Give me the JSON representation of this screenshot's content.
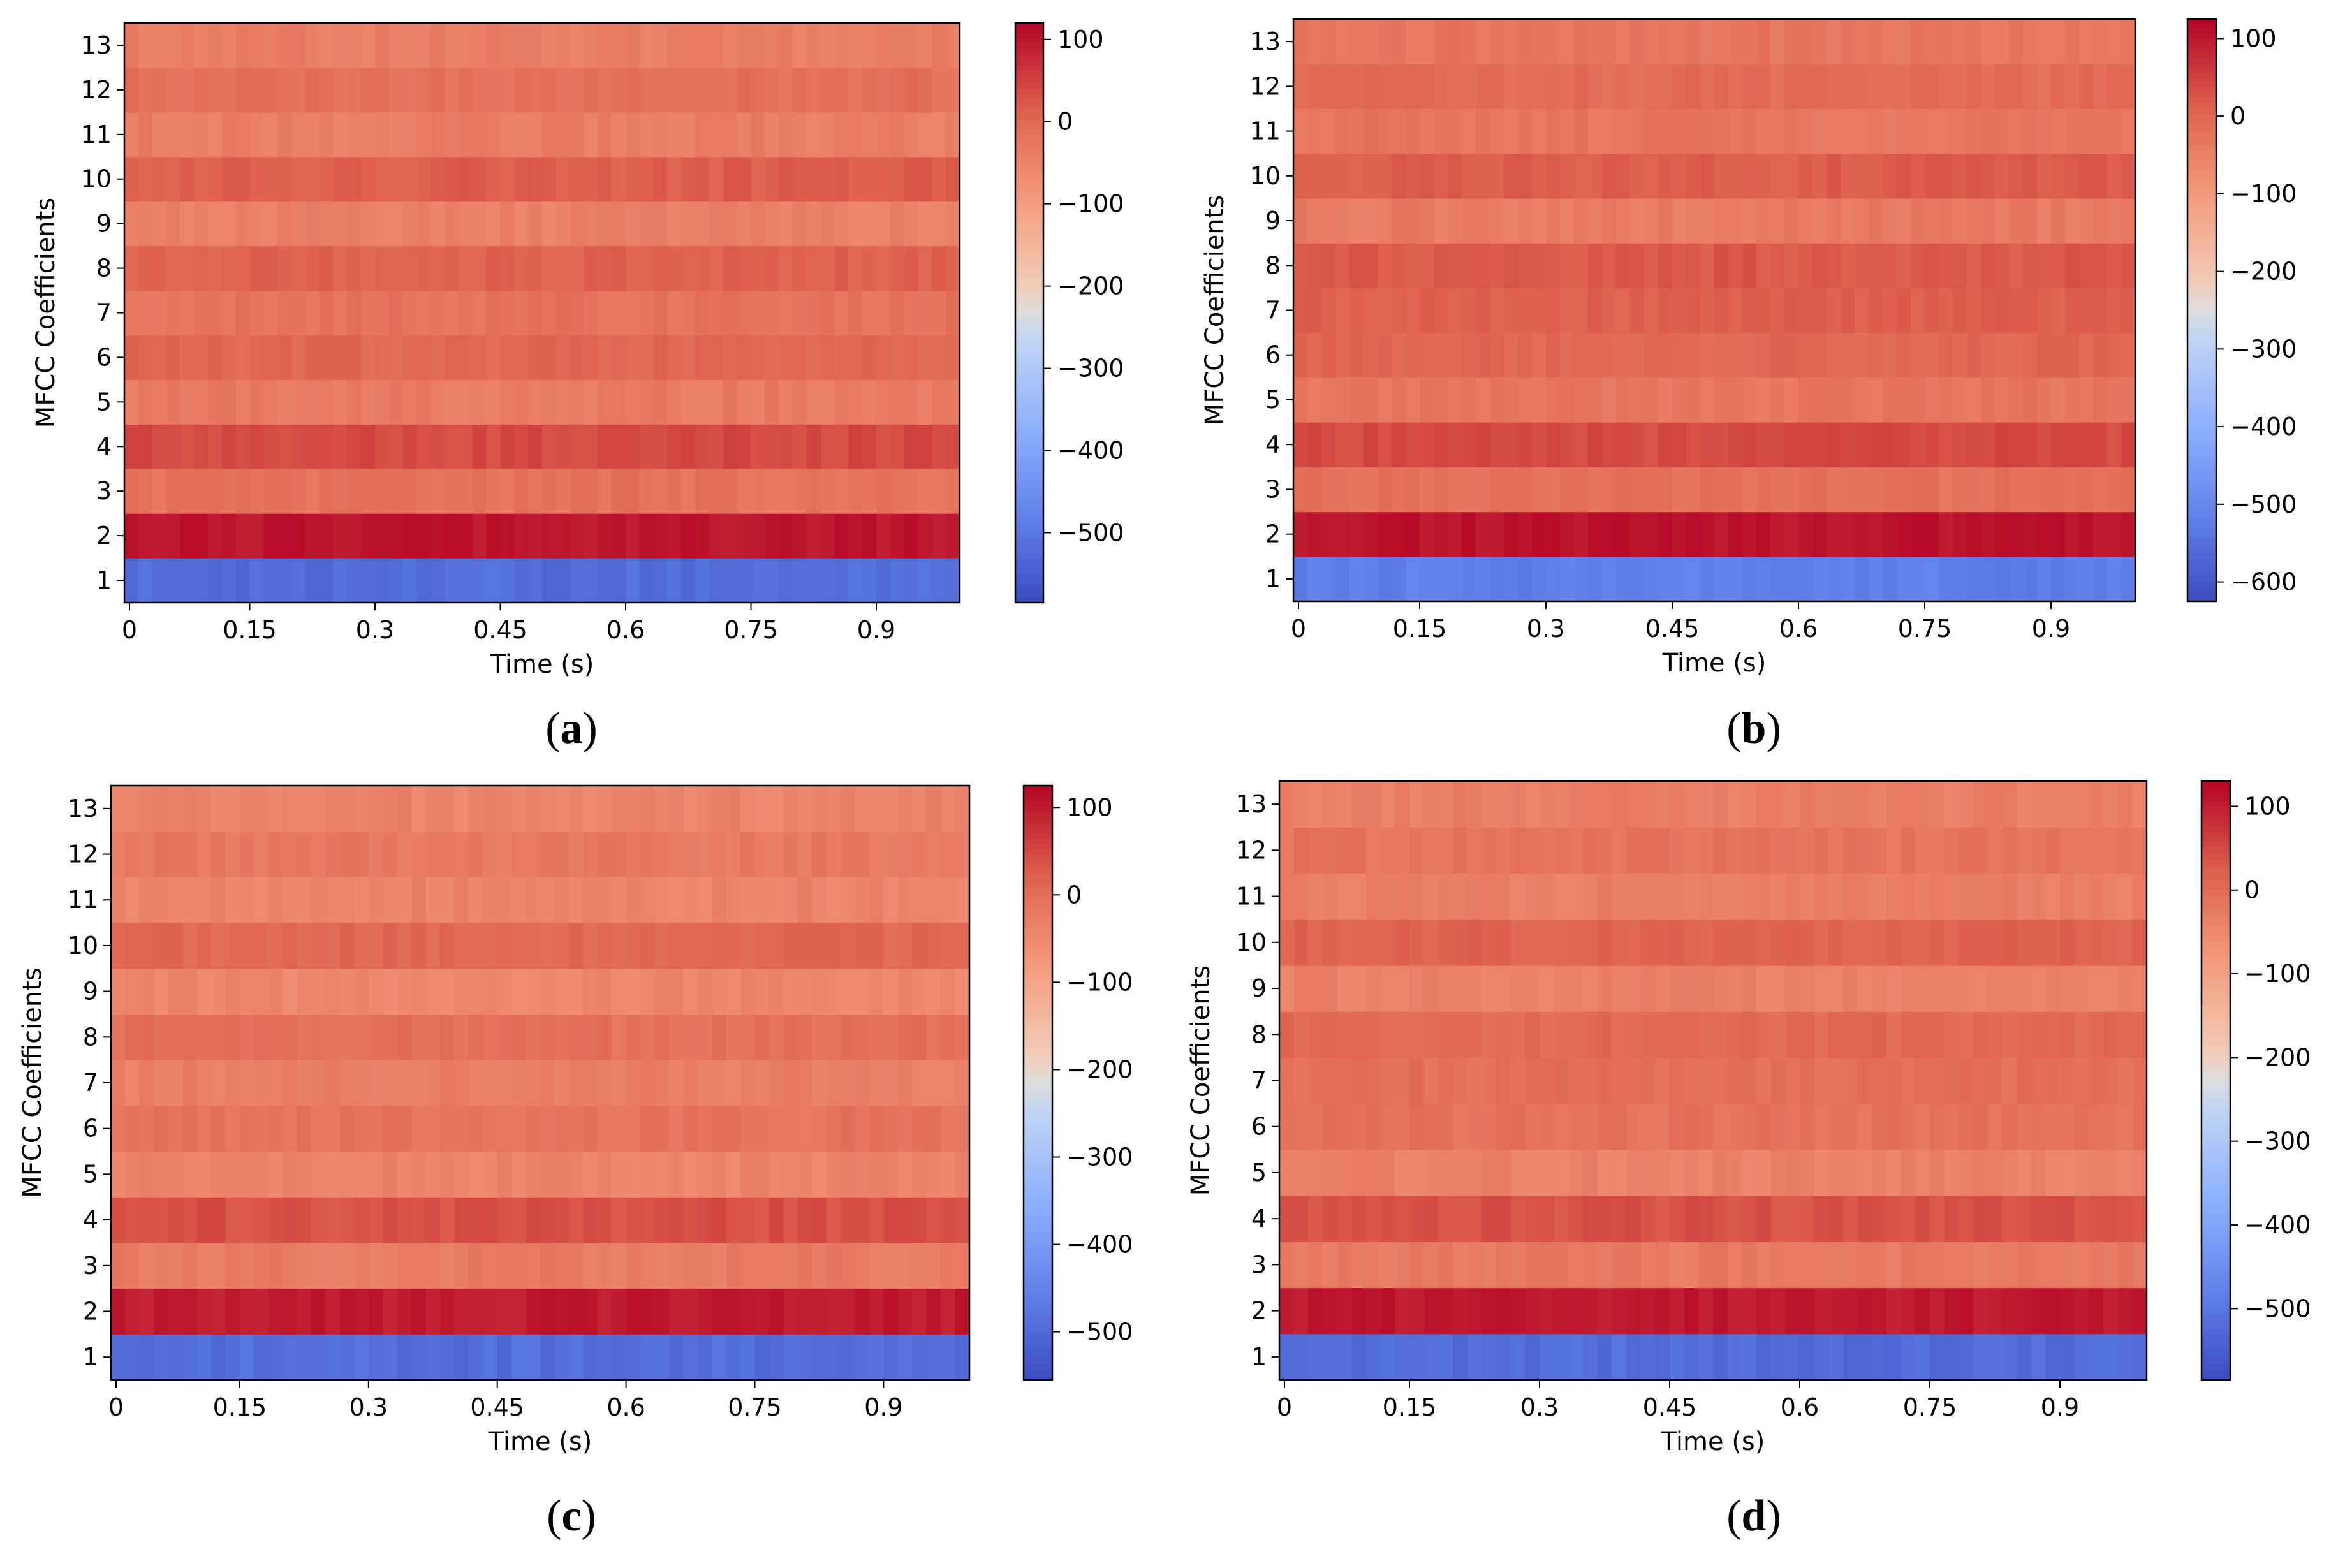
{
  "figure": {
    "panels": [
      {
        "id": "a",
        "caption_open": "(",
        "caption_letter": "a",
        "caption_close": ")"
      },
      {
        "id": "b",
        "caption_open": "(",
        "caption_letter": "b",
        "caption_close": ")"
      },
      {
        "id": "c",
        "caption_open": "(",
        "caption_letter": "c",
        "caption_close": ")"
      },
      {
        "id": "d",
        "caption_open": "(",
        "caption_letter": "d",
        "caption_close": ")"
      }
    ]
  },
  "colors": {
    "colormap": "coolwarm",
    "axis": "#000000",
    "background": "#ffffff"
  },
  "chart_data": [
    {
      "type": "heatmap",
      "panel": "a",
      "xlabel": "Time (s)",
      "ylabel": "MFCC Coefficients",
      "x_ticks": [
        "0",
        "0.15",
        "0.3",
        "0.45",
        "0.6",
        "0.75",
        "0.9"
      ],
      "x_tick_values": [
        0,
        0.15,
        0.3,
        0.45,
        0.6,
        0.75,
        0.9
      ],
      "xlim": [
        0,
        1.0
      ],
      "y_ticks": [
        "1",
        "2",
        "3",
        "4",
        "5",
        "6",
        "7",
        "8",
        "9",
        "10",
        "11",
        "12",
        "13"
      ],
      "colorbar": {
        "ticks": [
          "100",
          "0",
          "−100",
          "−200",
          "−300",
          "−400",
          "−500"
        ],
        "tick_values": [
          100,
          0,
          -100,
          -200,
          -300,
          -400,
          -500
        ],
        "range": [
          -585,
          120
        ]
      },
      "rows": [
        {
          "coef": 1,
          "value": -520
        },
        {
          "coef": 2,
          "value": 100
        },
        {
          "coef": 3,
          "value": -20
        },
        {
          "coef": 4,
          "value": 40
        },
        {
          "coef": 5,
          "value": -35
        },
        {
          "coef": 6,
          "value": 0
        },
        {
          "coef": 7,
          "value": -20
        },
        {
          "coef": 8,
          "value": 10
        },
        {
          "coef": 9,
          "value": -45
        },
        {
          "coef": 10,
          "value": 15
        },
        {
          "coef": 11,
          "value": -40
        },
        {
          "coef": 12,
          "value": -15
        },
        {
          "coef": 13,
          "value": -40
        }
      ]
    },
    {
      "type": "heatmap",
      "panel": "b",
      "xlabel": "Time (s)",
      "ylabel": "MFCC Coefficients",
      "x_ticks": [
        "0",
        "0.15",
        "0.3",
        "0.45",
        "0.6",
        "0.75",
        "0.9"
      ],
      "x_tick_values": [
        0,
        0.15,
        0.3,
        0.45,
        0.6,
        0.75,
        0.9
      ],
      "xlim": [
        0,
        1.0
      ],
      "y_ticks": [
        "1",
        "2",
        "3",
        "4",
        "5",
        "6",
        "7",
        "8",
        "9",
        "10",
        "11",
        "12",
        "13"
      ],
      "colorbar": {
        "ticks": [
          "100",
          "0",
          "−100",
          "−200",
          "−300",
          "−400",
          "−500",
          "−600"
        ],
        "tick_values": [
          100,
          0,
          -100,
          -200,
          -300,
          -400,
          -500,
          -600
        ],
        "range": [
          -625,
          125
        ]
      },
      "rows": [
        {
          "coef": 1,
          "value": -520
        },
        {
          "coef": 2,
          "value": 105
        },
        {
          "coef": 3,
          "value": -20
        },
        {
          "coef": 4,
          "value": 40
        },
        {
          "coef": 5,
          "value": -30
        },
        {
          "coef": 6,
          "value": 0
        },
        {
          "coef": 7,
          "value": 10
        },
        {
          "coef": 8,
          "value": 20
        },
        {
          "coef": 9,
          "value": -40
        },
        {
          "coef": 10,
          "value": 15
        },
        {
          "coef": 11,
          "value": -30
        },
        {
          "coef": 12,
          "value": -10
        },
        {
          "coef": 13,
          "value": -30
        }
      ]
    },
    {
      "type": "heatmap",
      "panel": "c",
      "xlabel": "Time (s)",
      "ylabel": "MFCC Coefficients",
      "x_ticks": [
        "0",
        "0.15",
        "0.3",
        "0.45",
        "0.6",
        "0.75",
        "0.9"
      ],
      "x_tick_values": [
        0,
        0.15,
        0.3,
        0.45,
        0.6,
        0.75,
        0.9
      ],
      "xlim": [
        0,
        1.0
      ],
      "y_ticks": [
        "1",
        "2",
        "3",
        "4",
        "5",
        "6",
        "7",
        "8",
        "9",
        "10",
        "11",
        "12",
        "13"
      ],
      "colorbar": {
        "ticks": [
          "100",
          "0",
          "−100",
          "−200",
          "−300",
          "−400",
          "−500"
        ],
        "tick_values": [
          100,
          0,
          -100,
          -200,
          -300,
          -400,
          -500
        ],
        "range": [
          -555,
          125
        ]
      },
      "rows": [
        {
          "coef": 1,
          "value": -490
        },
        {
          "coef": 2,
          "value": 100
        },
        {
          "coef": 3,
          "value": -25
        },
        {
          "coef": 4,
          "value": 40
        },
        {
          "coef": 5,
          "value": -40
        },
        {
          "coef": 6,
          "value": -10
        },
        {
          "coef": 7,
          "value": -30
        },
        {
          "coef": 8,
          "value": -5
        },
        {
          "coef": 9,
          "value": -45
        },
        {
          "coef": 10,
          "value": 10
        },
        {
          "coef": 11,
          "value": -40
        },
        {
          "coef": 12,
          "value": -20
        },
        {
          "coef": 13,
          "value": -40
        }
      ]
    },
    {
      "type": "heatmap",
      "panel": "d",
      "xlabel": "Time (s)",
      "ylabel": "MFCC Coefficients",
      "x_ticks": [
        "0",
        "0.15",
        "0.3",
        "0.45",
        "0.6",
        "0.75",
        "0.9"
      ],
      "x_tick_values": [
        0,
        0.15,
        0.3,
        0.45,
        0.6,
        0.75,
        0.9
      ],
      "xlim": [
        0,
        1.0
      ],
      "y_ticks": [
        "1",
        "2",
        "3",
        "4",
        "5",
        "6",
        "7",
        "8",
        "9",
        "10",
        "11",
        "12",
        "13"
      ],
      "colorbar": {
        "ticks": [
          "100",
          "0",
          "−100",
          "−200",
          "−300",
          "−400",
          "−500"
        ],
        "tick_values": [
          100,
          0,
          -100,
          -200,
          -300,
          -400,
          -500
        ],
        "range": [
          -585,
          130
        ]
      },
      "rows": [
        {
          "coef": 1,
          "value": -520
        },
        {
          "coef": 2,
          "value": 105
        },
        {
          "coef": 3,
          "value": -25
        },
        {
          "coef": 4,
          "value": 40
        },
        {
          "coef": 5,
          "value": -40
        },
        {
          "coef": 6,
          "value": -10
        },
        {
          "coef": 7,
          "value": -5
        },
        {
          "coef": 8,
          "value": 5
        },
        {
          "coef": 9,
          "value": -40
        },
        {
          "coef": 10,
          "value": 15
        },
        {
          "coef": 11,
          "value": -35
        },
        {
          "coef": 12,
          "value": -15
        },
        {
          "coef": 13,
          "value": -35
        }
      ]
    }
  ]
}
